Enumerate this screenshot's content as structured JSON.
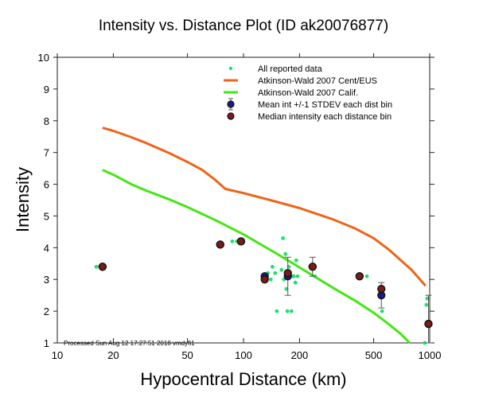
{
  "chart_data": {
    "type": "scatter",
    "title": "Intensity vs. Distance Plot (ID ak20076877)",
    "xlabel": "Hypocentral Distance (km)",
    "ylabel": "Intensity",
    "xscale": "log",
    "xlim": [
      10,
      1000
    ],
    "ylim": [
      1,
      10
    ],
    "xticks": [
      10,
      20,
      50,
      100,
      200,
      500,
      1000
    ],
    "xtick_labels": [
      "10",
      "20",
      "50",
      "100",
      "200",
      "500",
      "1000"
    ],
    "yticks": [
      1,
      2,
      3,
      4,
      5,
      6,
      7,
      8,
      9,
      10
    ],
    "ytick_labels": [
      "1",
      "2",
      "3",
      "4",
      "5",
      "6",
      "7",
      "8",
      "9",
      "10"
    ],
    "grid": false,
    "legend_position": "top-right",
    "annotation": "Processed Sun Aug 12 17:27:51 2018 vmdyfi1",
    "legend": [
      {
        "label": "All reported data",
        "marker": "dot",
        "color": "#22e06a"
      },
      {
        "label": "Atkinson-Wald 2007 Cent/EUS",
        "marker": "line",
        "color": "#ee6418"
      },
      {
        "label": "Atkinson-Wald 2007 Calif.",
        "marker": "line",
        "color": "#44e614"
      },
      {
        "label": "Mean int +/-1 STDEV each dist bin",
        "marker": "circle",
        "color": "#1a1a8c"
      },
      {
        "label": "Median intensity each distance bin",
        "marker": "circle",
        "color": "#7a1a1a"
      }
    ],
    "series": [
      {
        "name": "All reported data",
        "color": "#22e06a",
        "x": [
          16.2,
          87,
          92,
          130,
          135,
          140,
          143,
          148,
          151,
          160,
          163,
          165,
          168,
          170,
          172,
          175,
          178,
          181,
          183,
          186,
          190,
          192,
          195,
          242,
          460,
          555,
          940,
          960,
          970
        ],
        "y": [
          3.4,
          4.2,
          4.2,
          3.1,
          3.2,
          3.0,
          3.4,
          3.2,
          2.0,
          3.3,
          4.3,
          3.0,
          3.8,
          2.7,
          2.0,
          3.4,
          3.2,
          2.0,
          3.1,
          3.1,
          2.9,
          3.6,
          3.1,
          3.1,
          3.1,
          2.0,
          1.0,
          2.2,
          2.4
        ]
      },
      {
        "name": "Atkinson-Wald 2007 Cent/EUS",
        "color": "#ee6418",
        "x": [
          17.5,
          20,
          25,
          30,
          40,
          50,
          60,
          70,
          80,
          100,
          150,
          200,
          300,
          400,
          500,
          600,
          700,
          800,
          950
        ],
        "y": [
          7.78,
          7.68,
          7.48,
          7.3,
          6.98,
          6.7,
          6.45,
          6.15,
          5.85,
          5.72,
          5.45,
          5.25,
          4.9,
          4.6,
          4.3,
          3.95,
          3.6,
          3.3,
          2.8
        ]
      },
      {
        "name": "Atkinson-Wald 2007 Calif.",
        "color": "#44e614",
        "x": [
          17.5,
          20,
          25,
          30,
          40,
          50,
          70,
          100,
          150,
          200,
          300,
          400,
          500,
          600,
          700,
          780
        ],
        "y": [
          6.45,
          6.3,
          6.0,
          5.8,
          5.52,
          5.28,
          4.88,
          4.42,
          3.82,
          3.38,
          2.75,
          2.32,
          1.95,
          1.6,
          1.28,
          1.0
        ]
      },
      {
        "name": "Mean int +/-1 STDEV each dist bin",
        "color": "#1a1a8c",
        "x": [
          17.5,
          75,
          97,
          130,
          173,
          235,
          420,
          550,
          985
        ],
        "y": [
          3.4,
          4.1,
          4.2,
          3.1,
          3.1,
          3.4,
          3.1,
          2.5,
          1.6
        ],
        "err_low": [
          3.4,
          4.1,
          4.2,
          3.1,
          2.5,
          3.1,
          3.1,
          2.1,
          1.0
        ],
        "err_high": [
          3.4,
          4.1,
          4.2,
          3.1,
          3.7,
          3.7,
          3.1,
          2.9,
          2.5
        ]
      },
      {
        "name": "Median intensity each distance bin",
        "color": "#7a1a1a",
        "x": [
          17.5,
          75,
          97,
          130,
          173,
          235,
          420,
          550,
          985
        ],
        "y": [
          3.4,
          4.1,
          4.2,
          3.0,
          3.2,
          3.4,
          3.1,
          2.7,
          1.6
        ]
      }
    ]
  }
}
